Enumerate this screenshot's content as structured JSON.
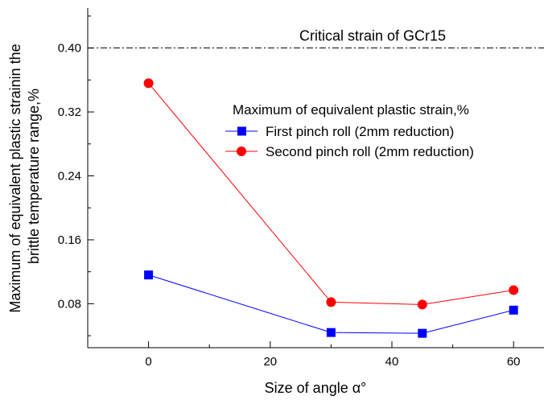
{
  "chart_data": {
    "type": "line",
    "xlabel": "Size of angle α°",
    "ylabel": [
      "Maximum of equivalent plastic strainin the",
      "brittle temperature range,%"
    ],
    "xlim": [
      -10,
      65
    ],
    "ylim": [
      0.025,
      0.45
    ],
    "xticks": [
      0,
      20,
      40,
      60
    ],
    "xtick_labels": [
      "0",
      "20",
      "40",
      "60"
    ],
    "yticks": [
      0.08,
      0.16,
      0.24,
      0.32,
      0.4
    ],
    "ytick_labels": [
      "0.08",
      "0.16",
      "0.24",
      "0.32",
      "0.40"
    ],
    "grid": false,
    "legend_title": "Maximum of equivalent plastic strain,%",
    "legend_position": "center-right",
    "series": [
      {
        "name": "First pinch roll (2mm reduction)",
        "color": "#0000ff",
        "marker": "square",
        "x": [
          0,
          30,
          45,
          60
        ],
        "y": [
          0.116,
          0.044,
          0.043,
          0.072
        ]
      },
      {
        "name": "Second pinch roll (2mm reduction)",
        "color": "#ff0000",
        "marker": "circle",
        "x": [
          0,
          30,
          45,
          60
        ],
        "y": [
          0.356,
          0.082,
          0.079,
          0.097
        ]
      }
    ],
    "reference_line": {
      "y": 0.4,
      "label": "Critical strain of GCr15",
      "style": "dash-dot",
      "color": "#000000"
    }
  }
}
